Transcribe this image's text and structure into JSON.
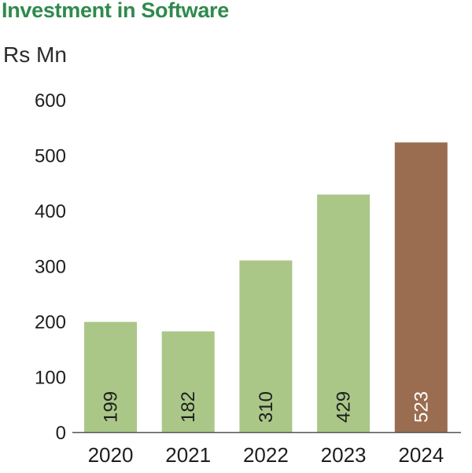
{
  "chart_data": {
    "type": "bar",
    "title": "Investment in Software",
    "ylabel": "Rs Mn",
    "xlabel": "",
    "categories": [
      "2020",
      "2021",
      "2022",
      "2023",
      "2024"
    ],
    "values": [
      199,
      182,
      310,
      429,
      523
    ],
    "value_labels": [
      "199",
      "182",
      "310",
      "429",
      "523"
    ],
    "ylim": [
      0,
      600
    ],
    "yticks": [
      "0",
      "100",
      "200",
      "300",
      "400",
      "500",
      "600"
    ],
    "grid": false,
    "legend": "none",
    "bar_colors": [
      "#aac788",
      "#aac788",
      "#aac788",
      "#aac788",
      "#9a6d50"
    ],
    "value_label_colors": [
      "#1e1e1e",
      "#1e1e1e",
      "#1e1e1e",
      "#1e1e1e",
      "#ffffff"
    ],
    "title_color": "#2f8a4c",
    "axis_color": "#555555"
  }
}
